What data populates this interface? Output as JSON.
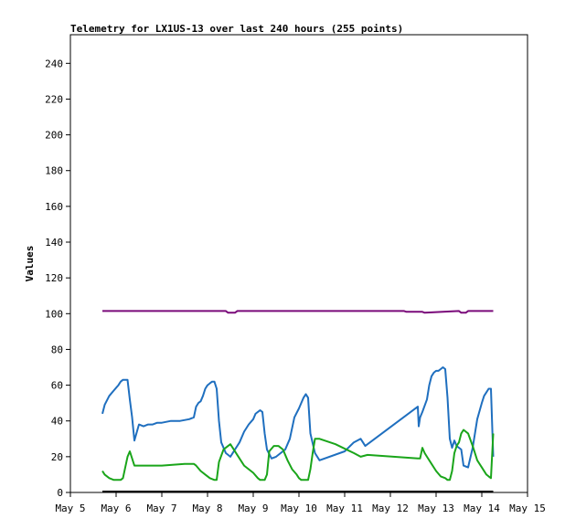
{
  "chart_data": {
    "type": "line",
    "title": "Telemetry for LX1US-13 over last 240 hours (255 points)",
    "xlabel": "",
    "ylabel": "Values",
    "x_ticks": [
      "May 5",
      "May 6",
      "May 7",
      "May 8",
      "May 9",
      "May 10",
      "May 11",
      "May 12",
      "May 13",
      "May 14",
      "May 15"
    ],
    "y_ticks": [
      0,
      20,
      40,
      60,
      80,
      100,
      120,
      140,
      160,
      180,
      200,
      220,
      240
    ],
    "xlim": [
      5.0,
      15.0
    ],
    "ylim": [
      0,
      256
    ],
    "grid": false,
    "legend": "none",
    "series": [
      {
        "color": "#7a0a7a",
        "x": [
          5.7,
          8.4,
          8.45,
          8.6,
          8.65,
          11.3,
          12.3,
          12.35,
          12.7,
          12.75,
          13.5,
          13.55,
          13.65,
          13.7,
          14.25
        ],
        "y": [
          101.5,
          101.5,
          100.5,
          100.5,
          101.5,
          101.5,
          101.5,
          101,
          101,
          100.5,
          101.5,
          100.5,
          100.5,
          101.5,
          101.5
        ]
      },
      {
        "color": "#1f6fbf",
        "x": [
          5.7,
          5.75,
          5.85,
          5.95,
          6.05,
          6.1,
          6.15,
          6.2,
          6.25,
          6.3,
          6.35,
          6.4,
          6.5,
          6.6,
          6.7,
          6.8,
          6.9,
          7.0,
          7.2,
          7.4,
          7.6,
          7.7,
          7.75,
          7.8,
          7.85,
          7.9,
          7.95,
          8.0,
          8.05,
          8.1,
          8.15,
          8.2,
          8.25,
          8.3,
          8.4,
          8.5,
          8.6,
          8.7,
          8.8,
          8.9,
          9.0,
          9.05,
          9.1,
          9.15,
          9.2,
          9.25,
          9.3,
          9.4,
          9.5,
          9.6,
          9.7,
          9.8,
          9.9,
          10.0,
          10.05,
          10.1,
          10.15,
          10.2,
          10.25,
          10.35,
          10.45,
          11.0,
          11.2,
          11.35,
          11.45,
          12.6,
          12.62,
          12.65,
          12.7,
          12.8,
          12.85,
          12.9,
          12.95,
          13.0,
          13.05,
          13.1,
          13.15,
          13.2,
          13.25,
          13.3,
          13.35,
          13.4,
          13.45,
          13.5,
          13.55,
          13.6,
          13.7,
          13.8,
          13.9,
          14.0,
          14.05,
          14.1,
          14.15,
          14.2,
          14.25
        ],
        "y": [
          44,
          49,
          54,
          57,
          60,
          62,
          63,
          63,
          63,
          52,
          42,
          29,
          38,
          37,
          38,
          38,
          39,
          39,
          40,
          40,
          41,
          42,
          48,
          50,
          51,
          54,
          58,
          60,
          61,
          62,
          62,
          58,
          40,
          28,
          22,
          20,
          24,
          28,
          34,
          38,
          41,
          44,
          45,
          46,
          45,
          33,
          24,
          19,
          20,
          22,
          24,
          30,
          42,
          47,
          50,
          53,
          55,
          53,
          33,
          22,
          18,
          23,
          28,
          30,
          26,
          48,
          37,
          42,
          45,
          52,
          60,
          65,
          67,
          68,
          68,
          69,
          70,
          69,
          53,
          30,
          25,
          29,
          26,
          25,
          24,
          15,
          14,
          25,
          41,
          50,
          54,
          56,
          58,
          58,
          20
        ]
      },
      {
        "color": "#1aa51a",
        "x": [
          5.7,
          5.75,
          5.85,
          5.95,
          6.05,
          6.1,
          6.15,
          6.2,
          6.25,
          6.3,
          6.4,
          7.0,
          7.5,
          7.7,
          7.75,
          7.85,
          7.95,
          8.05,
          8.15,
          8.2,
          8.25,
          8.35,
          8.45,
          8.5,
          8.55,
          8.65,
          8.8,
          9.0,
          9.1,
          9.15,
          9.2,
          9.25,
          9.3,
          9.35,
          9.45,
          9.55,
          9.65,
          9.75,
          9.85,
          9.95,
          10.0,
          10.05,
          10.1,
          10.2,
          10.25,
          10.3,
          10.35,
          10.45,
          10.8,
          11.2,
          11.35,
          11.5,
          12.6,
          12.65,
          12.7,
          12.75,
          12.8,
          12.9,
          13.0,
          13.1,
          13.2,
          13.25,
          13.3,
          13.35,
          13.4,
          13.45,
          13.5,
          13.55,
          13.6,
          13.7,
          13.8,
          13.9,
          14.0,
          14.1,
          14.15,
          14.2,
          14.25
        ],
        "y": [
          12,
          10,
          8,
          7,
          7,
          7,
          8,
          14,
          20,
          23,
          15,
          15,
          16,
          16,
          15,
          12,
          10,
          8,
          7,
          7,
          17,
          24,
          26,
          27,
          25,
          21,
          15,
          11,
          8,
          7,
          7,
          7,
          10,
          23,
          26,
          26,
          24,
          18,
          13,
          10,
          8,
          7,
          7,
          7,
          13,
          22,
          30,
          30,
          27,
          22,
          20,
          21,
          19,
          19,
          25,
          22,
          20,
          16,
          12,
          9,
          8,
          7,
          7,
          12,
          22,
          26,
          28,
          33,
          35,
          33,
          26,
          18,
          14,
          10,
          9,
          8,
          33
        ]
      },
      {
        "color": "#000000",
        "x": [
          5.7,
          14.25
        ],
        "y": [
          0.5,
          0.5
        ]
      }
    ]
  }
}
